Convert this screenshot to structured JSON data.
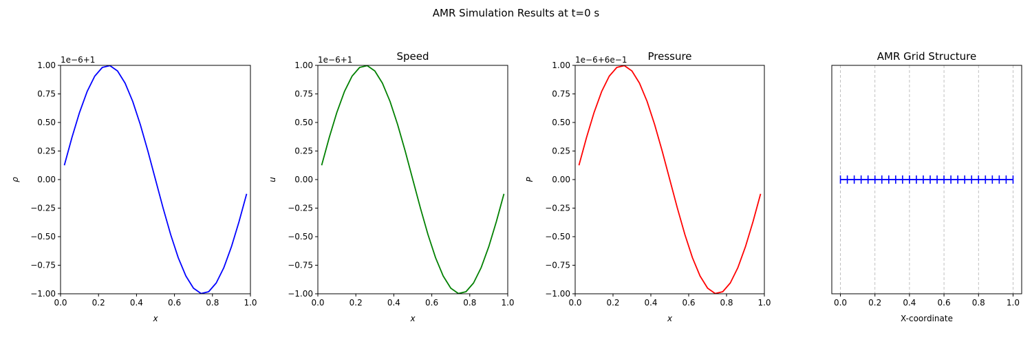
{
  "figure": {
    "suptitle": "AMR Simulation Results at t=0 s"
  },
  "chart_data": [
    {
      "type": "line",
      "title": "",
      "xlabel": "x",
      "ylabel": "ρ",
      "y_offset_label": "1e−6+1",
      "xlim": [
        0,
        1
      ],
      "ylim": [
        -1,
        1
      ],
      "xticks": [
        "0.0",
        "0.2",
        "0.4",
        "0.6",
        "0.8",
        "1.0"
      ],
      "yticks": [
        "−1.00",
        "−0.75",
        "−0.50",
        "−0.25",
        "0.00",
        "0.25",
        "0.50",
        "0.75",
        "1.00"
      ],
      "color": "#0000ff",
      "grid": false,
      "x": [
        0.02,
        0.06,
        0.1,
        0.14,
        0.18,
        0.22,
        0.26,
        0.3,
        0.34,
        0.38,
        0.42,
        0.46,
        0.5,
        0.54,
        0.58,
        0.62,
        0.66,
        0.7,
        0.74,
        0.78,
        0.82,
        0.86,
        0.9,
        0.94,
        0.98
      ],
      "y": [
        0.125,
        0.368,
        0.588,
        0.771,
        0.905,
        0.982,
        0.998,
        0.951,
        0.844,
        0.685,
        0.482,
        0.249,
        0.0,
        -0.249,
        -0.482,
        -0.685,
        -0.844,
        -0.951,
        -0.998,
        -0.982,
        -0.905,
        -0.771,
        -0.588,
        -0.368,
        -0.125
      ]
    },
    {
      "type": "line",
      "title": "Speed",
      "xlabel": "x",
      "ylabel": "u",
      "y_offset_label": "1e−6+1",
      "xlim": [
        0,
        1
      ],
      "ylim": [
        -1,
        1
      ],
      "xticks": [
        "0.0",
        "0.2",
        "0.4",
        "0.6",
        "0.8",
        "1.0"
      ],
      "yticks": [
        "−1.00",
        "−0.75",
        "−0.50",
        "−0.25",
        "0.00",
        "0.25",
        "0.50",
        "0.75",
        "1.00"
      ],
      "color": "#008000",
      "grid": false,
      "x": [
        0.02,
        0.06,
        0.1,
        0.14,
        0.18,
        0.22,
        0.26,
        0.3,
        0.34,
        0.38,
        0.42,
        0.46,
        0.5,
        0.54,
        0.58,
        0.62,
        0.66,
        0.7,
        0.74,
        0.78,
        0.82,
        0.86,
        0.9,
        0.94,
        0.98
      ],
      "y": [
        0.125,
        0.368,
        0.588,
        0.771,
        0.905,
        0.982,
        0.998,
        0.951,
        0.844,
        0.685,
        0.482,
        0.249,
        0.0,
        -0.249,
        -0.482,
        -0.685,
        -0.844,
        -0.951,
        -0.998,
        -0.982,
        -0.905,
        -0.771,
        -0.588,
        -0.368,
        -0.125
      ]
    },
    {
      "type": "line",
      "title": "Pressure",
      "xlabel": "x",
      "ylabel": "P",
      "y_offset_label": "1e−6+6e−1",
      "xlim": [
        0,
        1
      ],
      "ylim": [
        -1,
        1
      ],
      "xticks": [
        "0.0",
        "0.2",
        "0.4",
        "0.6",
        "0.8",
        "1.0"
      ],
      "yticks": [
        "−1.00",
        "−0.75",
        "−0.50",
        "−0.25",
        "0.00",
        "0.25",
        "0.50",
        "0.75",
        "1.00"
      ],
      "color": "#ff0000",
      "grid": false,
      "x": [
        0.02,
        0.06,
        0.1,
        0.14,
        0.18,
        0.22,
        0.26,
        0.3,
        0.34,
        0.38,
        0.42,
        0.46,
        0.5,
        0.54,
        0.58,
        0.62,
        0.66,
        0.7,
        0.74,
        0.78,
        0.82,
        0.86,
        0.9,
        0.94,
        0.98
      ],
      "y": [
        0.125,
        0.368,
        0.588,
        0.771,
        0.905,
        0.982,
        0.998,
        0.951,
        0.844,
        0.685,
        0.482,
        0.249,
        0.0,
        -0.249,
        -0.482,
        -0.685,
        -0.844,
        -0.951,
        -0.998,
        -0.982,
        -0.905,
        -0.771,
        -0.588,
        -0.368,
        -0.125
      ]
    },
    {
      "type": "scatter",
      "title": "AMR Grid Structure",
      "xlabel": "X-coordinate",
      "ylabel": "",
      "xlim": [
        -0.05,
        1.05
      ],
      "ylim": [
        -1,
        1
      ],
      "xticks": [
        "0.0",
        "0.2",
        "0.4",
        "0.6",
        "0.8",
        "1.0"
      ],
      "yticks": [],
      "x_gridlines": [
        0.0,
        0.2,
        0.4,
        0.6,
        0.8,
        1.0
      ],
      "grid": true,
      "color": "#0000ff",
      "marker": "|",
      "line_y": 0,
      "x": [
        0.0,
        0.04,
        0.08,
        0.12,
        0.16,
        0.2,
        0.24,
        0.28,
        0.32,
        0.36,
        0.4,
        0.44,
        0.48,
        0.52,
        0.56,
        0.6,
        0.64,
        0.68,
        0.72,
        0.76,
        0.8,
        0.84,
        0.88,
        0.92,
        0.96,
        1.0
      ],
      "y": [
        0,
        0,
        0,
        0,
        0,
        0,
        0,
        0,
        0,
        0,
        0,
        0,
        0,
        0,
        0,
        0,
        0,
        0,
        0,
        0,
        0,
        0,
        0,
        0,
        0,
        0
      ]
    }
  ]
}
